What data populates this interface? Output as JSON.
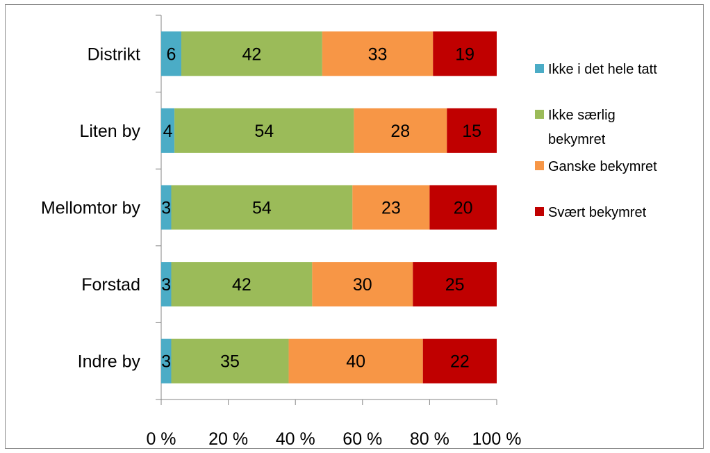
{
  "chart_data": {
    "type": "bar",
    "orientation": "horizontal",
    "stacked": "percent",
    "categories": [
      "Distrikt",
      "Liten by",
      "Mellomtor by",
      "Forstad",
      "Indre by"
    ],
    "series": [
      {
        "name": "Ikke i det hele tatt",
        "color": "#4bacc6",
        "values": [
          6,
          4,
          3,
          3,
          3
        ]
      },
      {
        "name": "Ikke særlig bekymret",
        "color": "#9bbb59",
        "values": [
          42,
          54,
          54,
          42,
          35
        ]
      },
      {
        "name": "Ganske bekymret",
        "color": "#f79646",
        "values": [
          33,
          28,
          23,
          30,
          40
        ]
      },
      {
        "name": "Svært bekymret",
        "color": "#c00000",
        "values": [
          19,
          15,
          20,
          25,
          22
        ]
      }
    ],
    "xlim": [
      0,
      100
    ],
    "xticks": [
      "0 %",
      "20 %",
      "40 %",
      "60 %",
      "80 %",
      "100 %"
    ],
    "legend_lines": [
      [
        "Ikke i det hele tatt"
      ],
      [
        "Ikke særlig",
        "bekymret"
      ],
      [
        "Ganske bekymret"
      ],
      [
        "Svært bekymret"
      ]
    ],
    "legend_position": "right",
    "grid": false,
    "title": "",
    "xlabel": "",
    "ylabel": ""
  }
}
